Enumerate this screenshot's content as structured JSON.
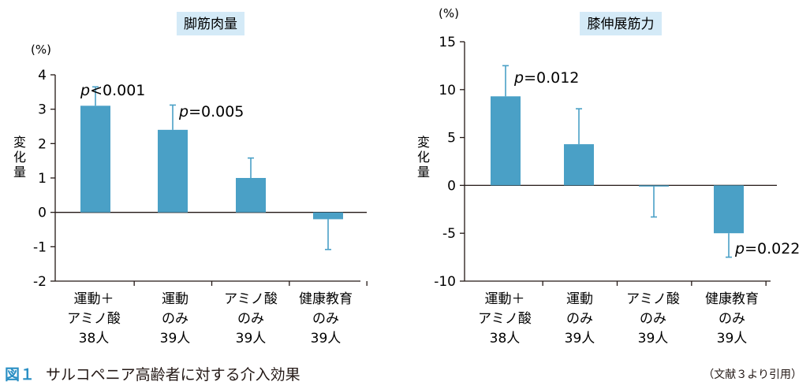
{
  "figure": {
    "number": "図１",
    "caption": "サルコペニア高齢者に対する介入効果",
    "source": "（文献３より引用）"
  },
  "colors": {
    "bar": "#4aa0c6",
    "title_bg": "#d4eaf7",
    "figure_number": "#2a8fc4"
  },
  "chart_data": [
    {
      "type": "bar",
      "title": "脚筋肉量",
      "unit": "(%)",
      "ylabel": "変化量",
      "ylim": [
        -2,
        4
      ],
      "yticks": [
        4,
        3,
        2,
        1,
        0,
        -1,
        -2
      ],
      "ytick_labels": [
        "4",
        "3",
        "2",
        "1",
        "0",
        "-1",
        "-2"
      ],
      "categories": [
        [
          "運動＋",
          "アミノ酸",
          "38人"
        ],
        [
          "運動",
          "のみ",
          "39人"
        ],
        [
          "アミノ酸",
          "のみ",
          "39人"
        ],
        [
          "健康教育",
          "のみ",
          "39人"
        ]
      ],
      "values": [
        3.1,
        2.4,
        1.0,
        -0.2
      ],
      "errors": [
        0.55,
        0.72,
        0.58,
        0.88
      ],
      "annotations": [
        {
          "index": 0,
          "p": "p",
          "rest": "<0.001"
        },
        {
          "index": 1,
          "p": "p",
          "rest": "=0.005"
        }
      ]
    },
    {
      "type": "bar",
      "title": "膝伸展筋力",
      "unit": "(%)",
      "ylabel": "変化量",
      "ylim": [
        -10,
        15
      ],
      "yticks": [
        15,
        10,
        5,
        0,
        -5,
        -10
      ],
      "ytick_labels": [
        "15",
        "10",
        "5",
        "0",
        "-5",
        "-10"
      ],
      "categories": [
        [
          "運動＋",
          "アミノ酸",
          "38人"
        ],
        [
          "運動",
          "のみ",
          "39人"
        ],
        [
          "アミノ酸",
          "のみ",
          "39人"
        ],
        [
          "健康教育",
          "のみ",
          "39人"
        ]
      ],
      "values": [
        9.3,
        4.3,
        -0.1,
        -5.0
      ],
      "errors": [
        3.2,
        3.7,
        3.2,
        2.5
      ],
      "annotations": [
        {
          "index": 0,
          "p": "p",
          "rest": "=0.012"
        },
        {
          "index": 3,
          "p": "p",
          "rest": "=0.022"
        }
      ]
    }
  ]
}
